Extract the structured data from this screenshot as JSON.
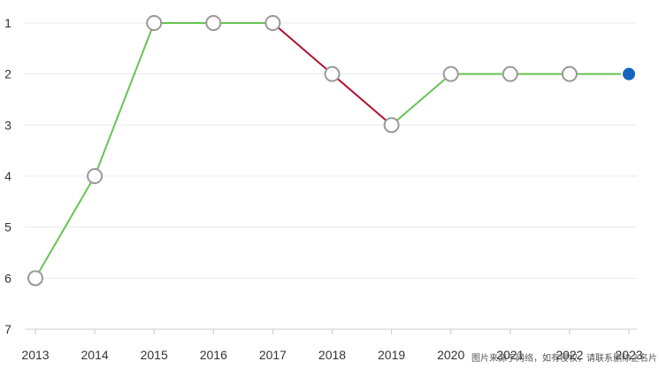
{
  "chart_data": {
    "type": "line",
    "title": "",
    "xlabel": "",
    "ylabel": "",
    "x": [
      "2013",
      "2014",
      "2015",
      "2016",
      "2017",
      "2018",
      "2019",
      "2020",
      "2021",
      "2022",
      "2023"
    ],
    "values": [
      6,
      4,
      1,
      1,
      1,
      2,
      3,
      2,
      2,
      2,
      2
    ],
    "y_ticks": [
      "1",
      "2",
      "3",
      "4",
      "5",
      "6",
      "7"
    ],
    "ylim": [
      1,
      7
    ],
    "y_inverted": true,
    "grid": true,
    "colors": {
      "rise_or_flat": "#66c452",
      "drop": "#b01030",
      "marker_fill": "#ffffff",
      "marker_stroke": "#999999",
      "last_marker": "#1565c0"
    }
  },
  "watermark": "图片来源于网络，如有侵权，请联系删除企名片"
}
